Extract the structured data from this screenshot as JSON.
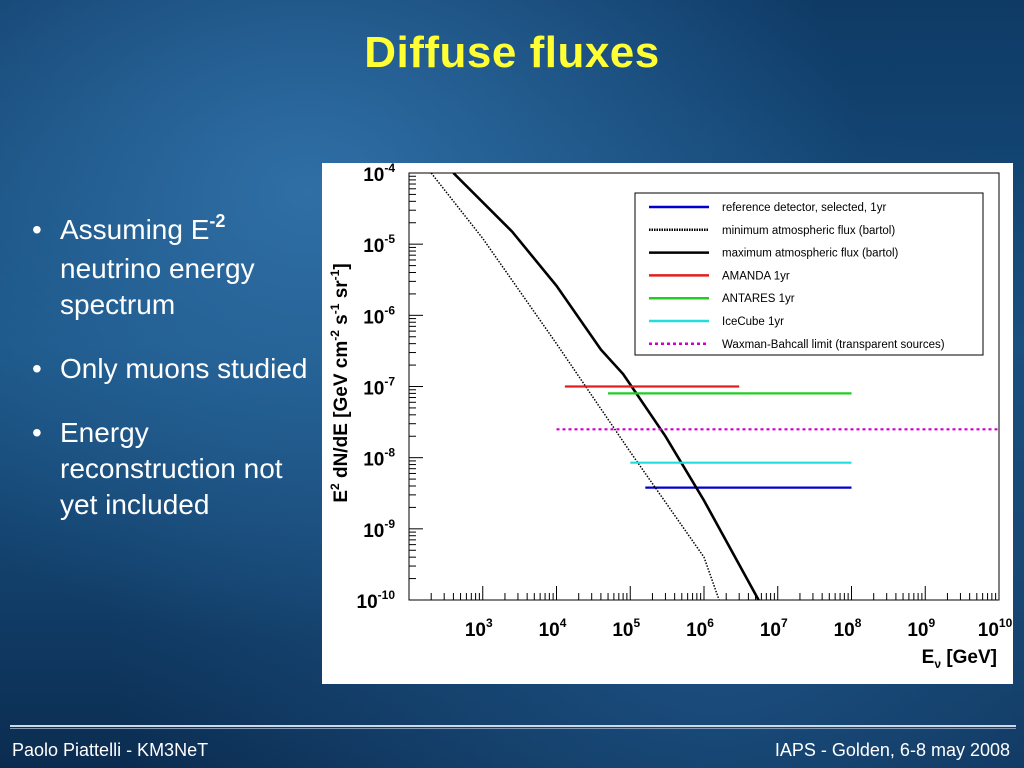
{
  "slide": {
    "title": "Diffuse fluxes",
    "bullets": [
      {
        "main": "Assuming E",
        "sup": "-2",
        "rest": "neutrino energy spectrum"
      },
      {
        "main": "Only muons studied"
      },
      {
        "main": "Energy reconstruction not yet included"
      }
    ],
    "footer_left": "Paolo Piattelli - KM3NeT",
    "footer_right": "IAPS - Golden, 6-8 may 2008"
  },
  "chart_data": {
    "type": "line",
    "xscale": "log",
    "yscale": "log",
    "xlim": [
      100,
      10000000000
    ],
    "ylim": [
      1e-10,
      0.0001
    ],
    "ylabel": "E^2 dN/dE [GeV cm^-2 s^-1 sr^-1]",
    "xlabel": "E_ν [GeV]",
    "x_ticks": [
      "10^3",
      "10^4",
      "10^5",
      "10^6",
      "10^7",
      "10^8",
      "10^9",
      "10^10"
    ],
    "y_ticks": [
      "10^-4",
      "10^-5",
      "10^-6",
      "10^-7",
      "10^-8",
      "10^-9",
      "10^-10"
    ],
    "legend_position": "top-right",
    "series": [
      {
        "name": "reference detector, selected, 1yr",
        "color": "#0000cc",
        "style": "solid",
        "x": [
          160000,
          100000000
        ],
        "y": [
          3.8e-09,
          3.8e-09
        ]
      },
      {
        "name": "minimum atmospheric flux (bartol)",
        "color": "#000000",
        "style": "dotted",
        "x": [
          200,
          1000,
          10000,
          100000,
          1000000,
          1600000
        ],
        "y": [
          0.0001,
          1.2e-05,
          4e-07,
          1.2e-08,
          4e-10,
          1e-10
        ]
      },
      {
        "name": "maximum atmospheric flux (bartol)",
        "color": "#000000",
        "style": "solid",
        "x": [
          400,
          2500,
          10000,
          40000,
          80000,
          300000,
          1000000,
          5500000
        ],
        "y": [
          0.0001,
          1.5e-05,
          2.6e-06,
          3.3e-07,
          1.5e-07,
          2e-08,
          2.5e-09,
          1e-10
        ]
      },
      {
        "name": "AMANDA 1yr",
        "color": "#e02020",
        "style": "solid",
        "x": [
          13000,
          3000000
        ],
        "y": [
          1e-07,
          1e-07
        ]
      },
      {
        "name": "ANTARES 1yr",
        "color": "#22cc22",
        "style": "solid",
        "x": [
          50000,
          100000000
        ],
        "y": [
          8e-08,
          8e-08
        ]
      },
      {
        "name": "IceCube 1yr",
        "color": "#22dddd",
        "style": "solid",
        "x": [
          100000,
          100000000
        ],
        "y": [
          8.5e-09,
          8.5e-09
        ]
      },
      {
        "name": "Waxman-Bahcall limit (transparent sources)",
        "color": "#cc00cc",
        "style": "dotted",
        "x": [
          10000,
          10000000000
        ],
        "y": [
          2.5e-08,
          2.5e-08
        ]
      }
    ]
  }
}
